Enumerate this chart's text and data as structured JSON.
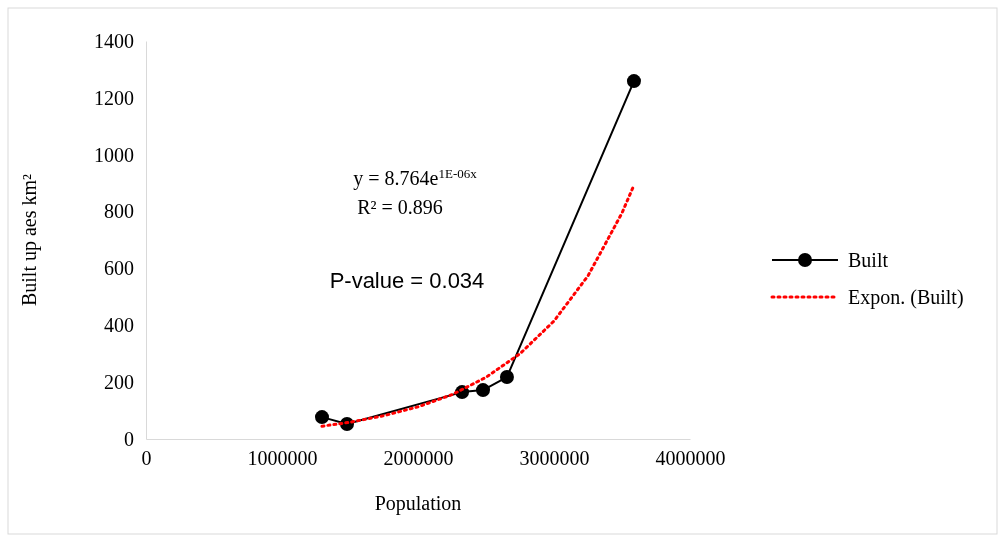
{
  "chart_data": {
    "type": "line",
    "xlabel": "Population",
    "ylabel": "Built up aes km²",
    "xlim": [
      0,
      4000000
    ],
    "xticks": [
      0,
      1000000,
      2000000,
      3000000,
      4000000
    ],
    "ylim": [
      0,
      1400
    ],
    "yticks": [
      0,
      200,
      400,
      600,
      800,
      1000,
      1200,
      1400
    ],
    "grid": false,
    "legend": "right",
    "series": [
      {
        "name": "Built",
        "color": "#000000",
        "marker": "circle",
        "line_style": "solid",
        "x": [
          1294000,
          1478000,
          2324000,
          2478000,
          2654000,
          3588000
        ],
        "values": [
          77,
          53,
          165,
          172,
          218,
          1259
        ]
      },
      {
        "name": "Expon. (Built)",
        "color": "#ff0000",
        "marker": "none",
        "line_style": "dotted",
        "x": [
          1294000,
          1500000,
          1750000,
          2000000,
          2250000,
          2500000,
          2750000,
          3000000,
          3250000,
          3500000,
          3588000
        ],
        "values": [
          45,
          59,
          82,
          113,
          156,
          217,
          300,
          415,
          574,
          795,
          893
        ]
      }
    ],
    "annotations": [
      "y = 8.764e$^{1E-06x}$",
      "R² = 0.896",
      "P-value = 0.034"
    ]
  }
}
